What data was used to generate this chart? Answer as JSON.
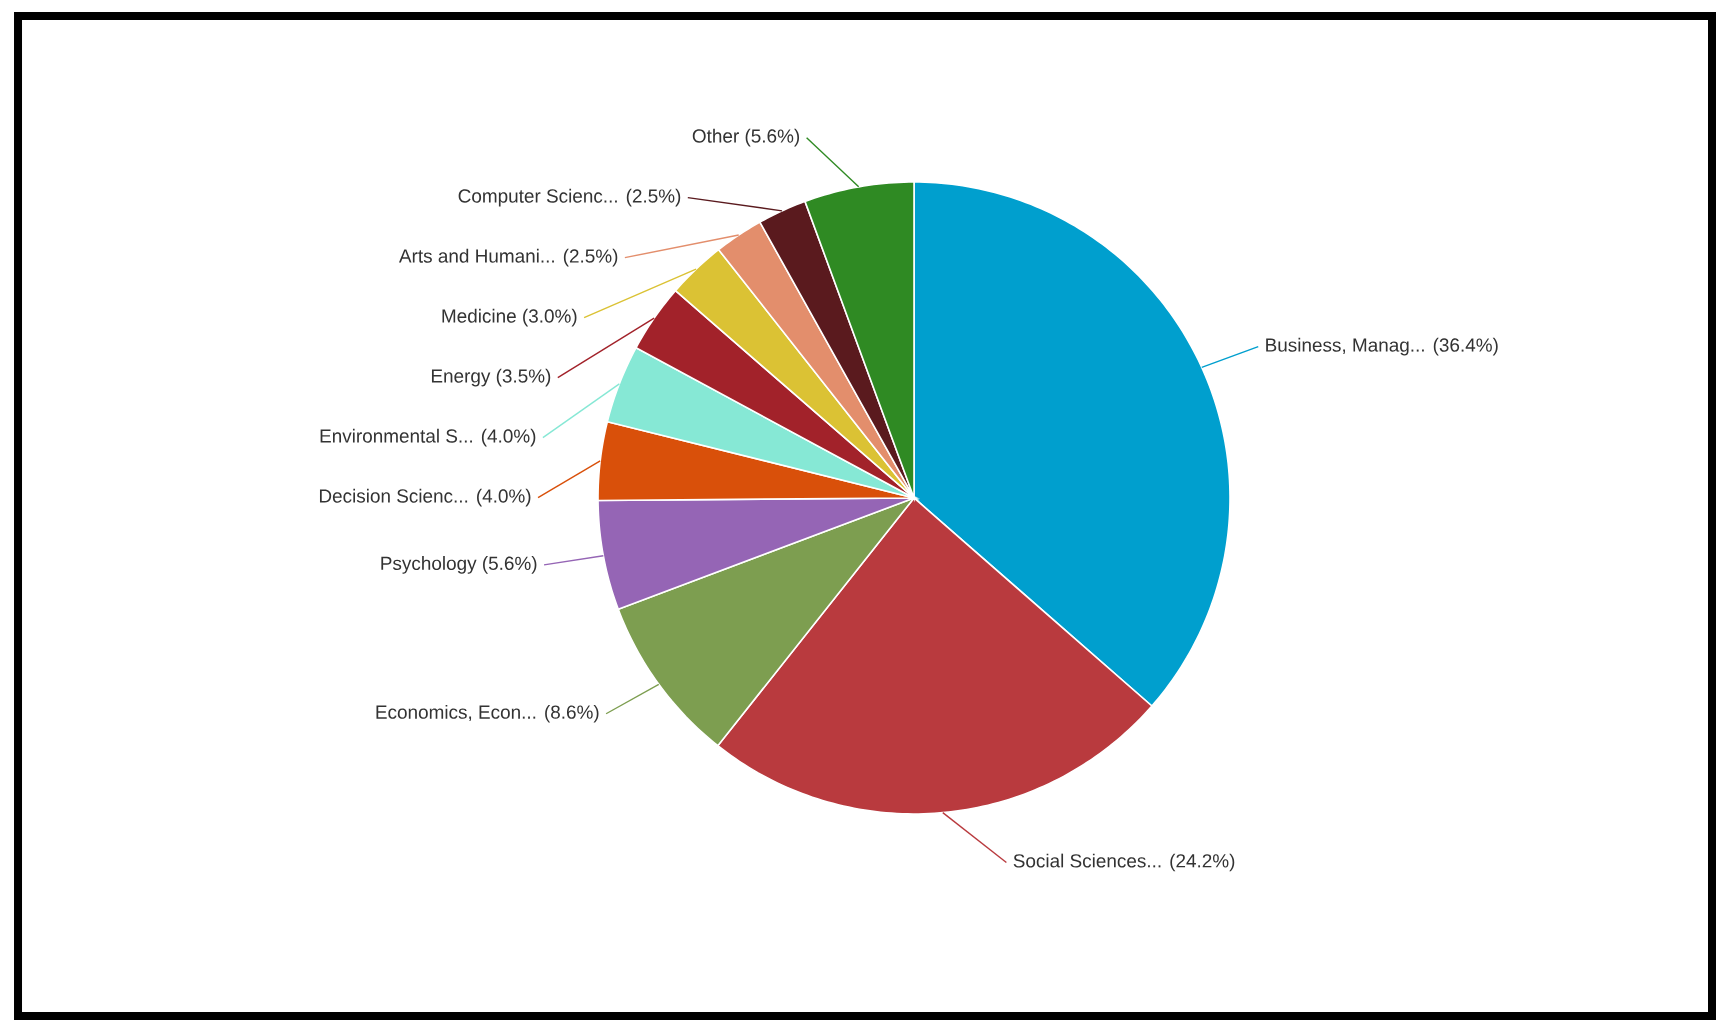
{
  "chart_data": {
    "type": "pie",
    "categories": [
      "Business, Manag... (36.4%)",
      "Social Sciences... (24.2%)",
      "Economics, Econ... (8.6%)",
      "Psychology (5.6%)",
      "Decision Scienc... (4.0%)",
      "Environmental S... (4.0%)",
      "Energy (3.5%)",
      "Medicine (3.0%)",
      "Arts and Humani... (2.5%)",
      "Computer Scienc... (2.5%)",
      "Other (5.6%)"
    ],
    "values": [
      36.4,
      24.2,
      8.6,
      5.6,
      4.0,
      4.0,
      3.5,
      3.0,
      2.5,
      2.5,
      5.6
    ],
    "colors": [
      "#009fce",
      "#b93a3e",
      "#7d9e50",
      "#9565b5",
      "#d9500a",
      "#86e8d5",
      "#a2222a",
      "#dbc234",
      "#e38e6c",
      "#5a1a1e",
      "#2f8a23"
    ]
  }
}
